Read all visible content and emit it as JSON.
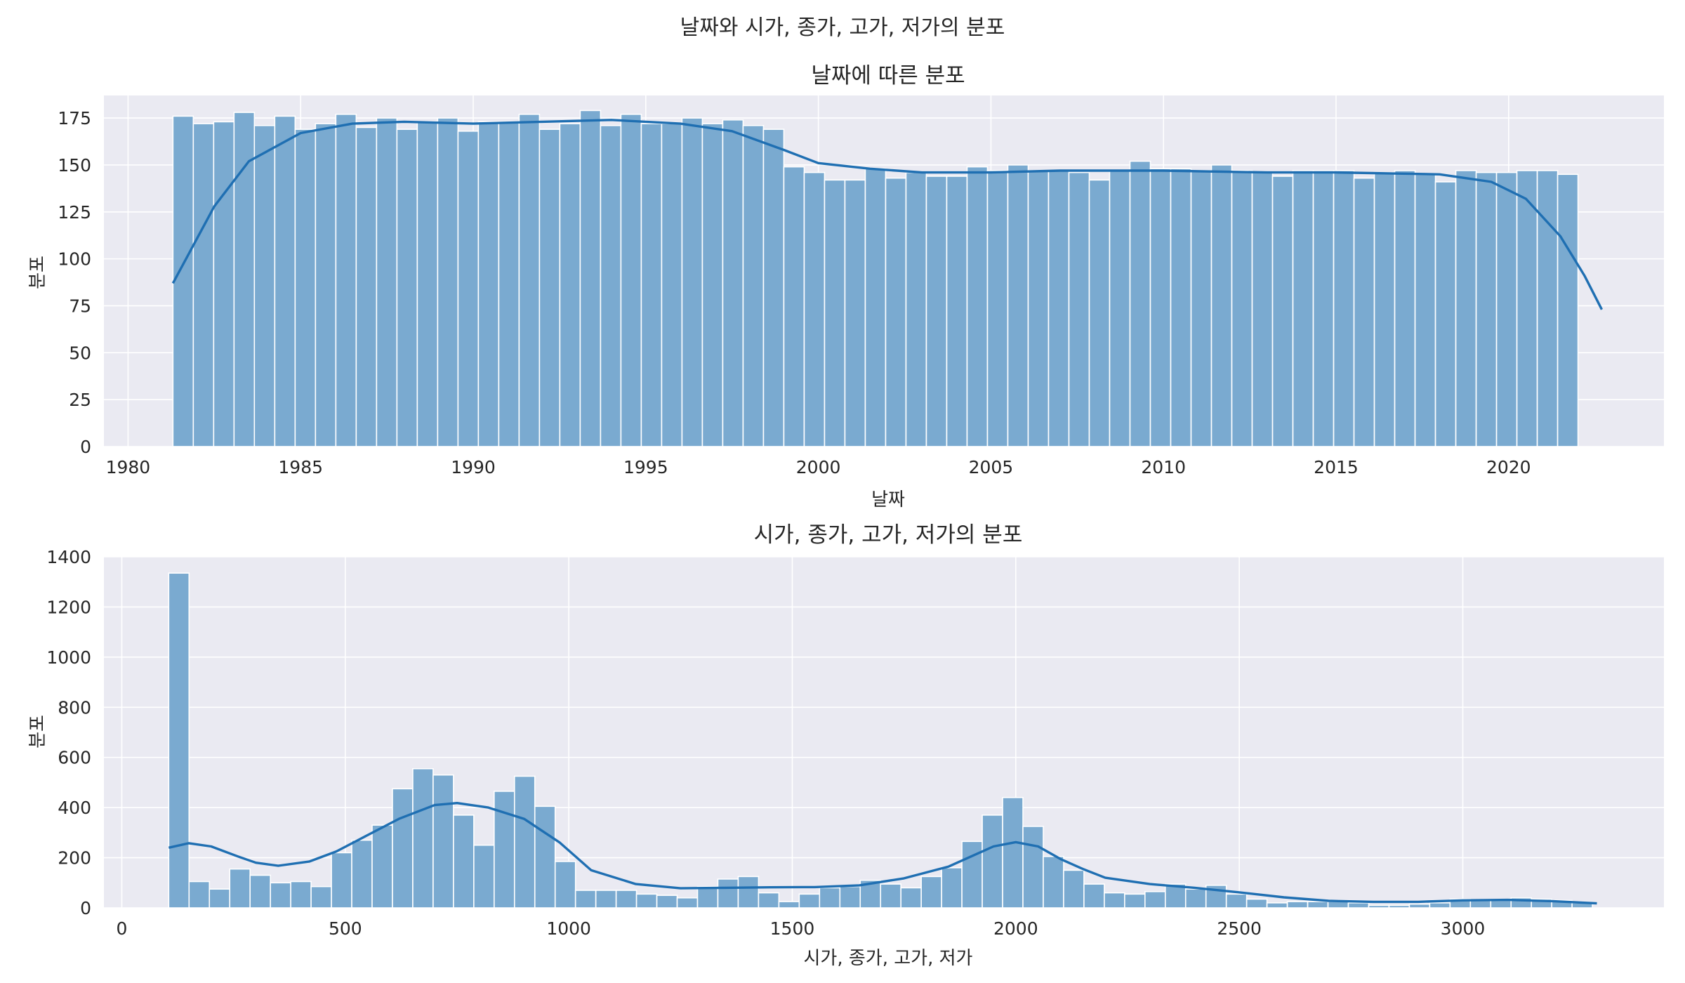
{
  "suptitle": "날짜와 시가, 종가, 고가, 저가의 분포",
  "colors": {
    "bar": "#7aaad0",
    "bar_edge": "#ffffff",
    "kde": "#1f6fb2",
    "plot_bg": "#eaeaf2",
    "grid": "#ffffff"
  },
  "chart_data": [
    {
      "type": "bar",
      "title": "날짜에 따른 분포",
      "xlabel": "날짜",
      "ylabel": "분포",
      "xlim": [
        1979.3,
        2024.5
      ],
      "ylim": [
        0,
        187
      ],
      "xticks": [
        1980,
        1985,
        1990,
        1995,
        2000,
        2005,
        2010,
        2015,
        2020
      ],
      "yticks": [
        0,
        25,
        50,
        75,
        100,
        125,
        150,
        175
      ],
      "bin_start": 1981.3,
      "bin_width": 0.59,
      "values": [
        176,
        172,
        173,
        178,
        171,
        176,
        169,
        172,
        177,
        170,
        175,
        169,
        173,
        175,
        168,
        173,
        173,
        177,
        169,
        172,
        179,
        171,
        177,
        172,
        172,
        175,
        172,
        174,
        171,
        169,
        149,
        146,
        142,
        142,
        148,
        143,
        146,
        144,
        144,
        149,
        147,
        150,
        147,
        147,
        146,
        142,
        147,
        152,
        148,
        148,
        147,
        150,
        147,
        146,
        144,
        147,
        147,
        147,
        143,
        146,
        147,
        145,
        141,
        147,
        146,
        146,
        147,
        147,
        145
      ],
      "kde": [
        [
          1981.3,
          87
        ],
        [
          1982.5,
          128
        ],
        [
          1983.5,
          152
        ],
        [
          1985,
          167
        ],
        [
          1986.5,
          172
        ],
        [
          1988,
          173
        ],
        [
          1990,
          172
        ],
        [
          1992,
          173
        ],
        [
          1994,
          174
        ],
        [
          1996,
          172
        ],
        [
          1997.5,
          168
        ],
        [
          1999,
          158
        ],
        [
          2000,
          151
        ],
        [
          2001.5,
          148
        ],
        [
          2003,
          146
        ],
        [
          2005,
          146
        ],
        [
          2007,
          147
        ],
        [
          2010,
          147
        ],
        [
          2013,
          146
        ],
        [
          2015,
          146
        ],
        [
          2018,
          145
        ],
        [
          2019.5,
          141
        ],
        [
          2020.5,
          132
        ],
        [
          2021.5,
          112
        ],
        [
          2022.2,
          91
        ],
        [
          2022.7,
          73
        ]
      ]
    },
    {
      "type": "bar",
      "title": "시가, 종가, 고가, 저가의 분포",
      "xlabel": "시가, 종가, 고가, 저가",
      "ylabel": "분포",
      "xlim": [
        -40,
        3450
      ],
      "ylim": [
        0,
        1400
      ],
      "xticks": [
        0,
        500,
        1000,
        1500,
        2000,
        2500,
        3000
      ],
      "yticks": [
        0,
        200,
        400,
        600,
        800,
        1000,
        1200,
        1400
      ],
      "bin_start": 105,
      "bin_width": 45.5,
      "values": [
        1335,
        105,
        75,
        155,
        130,
        100,
        105,
        85,
        220,
        270,
        330,
        475,
        555,
        530,
        370,
        250,
        465,
        525,
        405,
        185,
        70,
        70,
        70,
        55,
        50,
        40,
        85,
        115,
        125,
        60,
        25,
        55,
        80,
        85,
        110,
        95,
        80,
        125,
        160,
        265,
        370,
        440,
        325,
        205,
        150,
        95,
        60,
        55,
        65,
        95,
        75,
        90,
        55,
        35,
        20,
        25,
        25,
        25,
        20,
        10,
        10,
        15,
        20,
        35,
        30,
        30,
        40,
        35,
        30,
        20
      ],
      "kde": [
        [
          105,
          240
        ],
        [
          150,
          258
        ],
        [
          200,
          245
        ],
        [
          260,
          205
        ],
        [
          300,
          180
        ],
        [
          350,
          168
        ],
        [
          420,
          185
        ],
        [
          480,
          225
        ],
        [
          550,
          290
        ],
        [
          620,
          355
        ],
        [
          700,
          410
        ],
        [
          750,
          418
        ],
        [
          820,
          400
        ],
        [
          900,
          355
        ],
        [
          980,
          260
        ],
        [
          1050,
          150
        ],
        [
          1150,
          95
        ],
        [
          1250,
          78
        ],
        [
          1350,
          80
        ],
        [
          1450,
          82
        ],
        [
          1550,
          83
        ],
        [
          1650,
          90
        ],
        [
          1750,
          118
        ],
        [
          1850,
          165
        ],
        [
          1950,
          245
        ],
        [
          2000,
          262
        ],
        [
          2050,
          245
        ],
        [
          2100,
          195
        ],
        [
          2150,
          155
        ],
        [
          2200,
          120
        ],
        [
          2300,
          95
        ],
        [
          2400,
          80
        ],
        [
          2500,
          62
        ],
        [
          2600,
          42
        ],
        [
          2700,
          28
        ],
        [
          2800,
          24
        ],
        [
          2900,
          24
        ],
        [
          3000,
          30
        ],
        [
          3100,
          32
        ],
        [
          3200,
          27
        ],
        [
          3300,
          18
        ]
      ]
    }
  ]
}
